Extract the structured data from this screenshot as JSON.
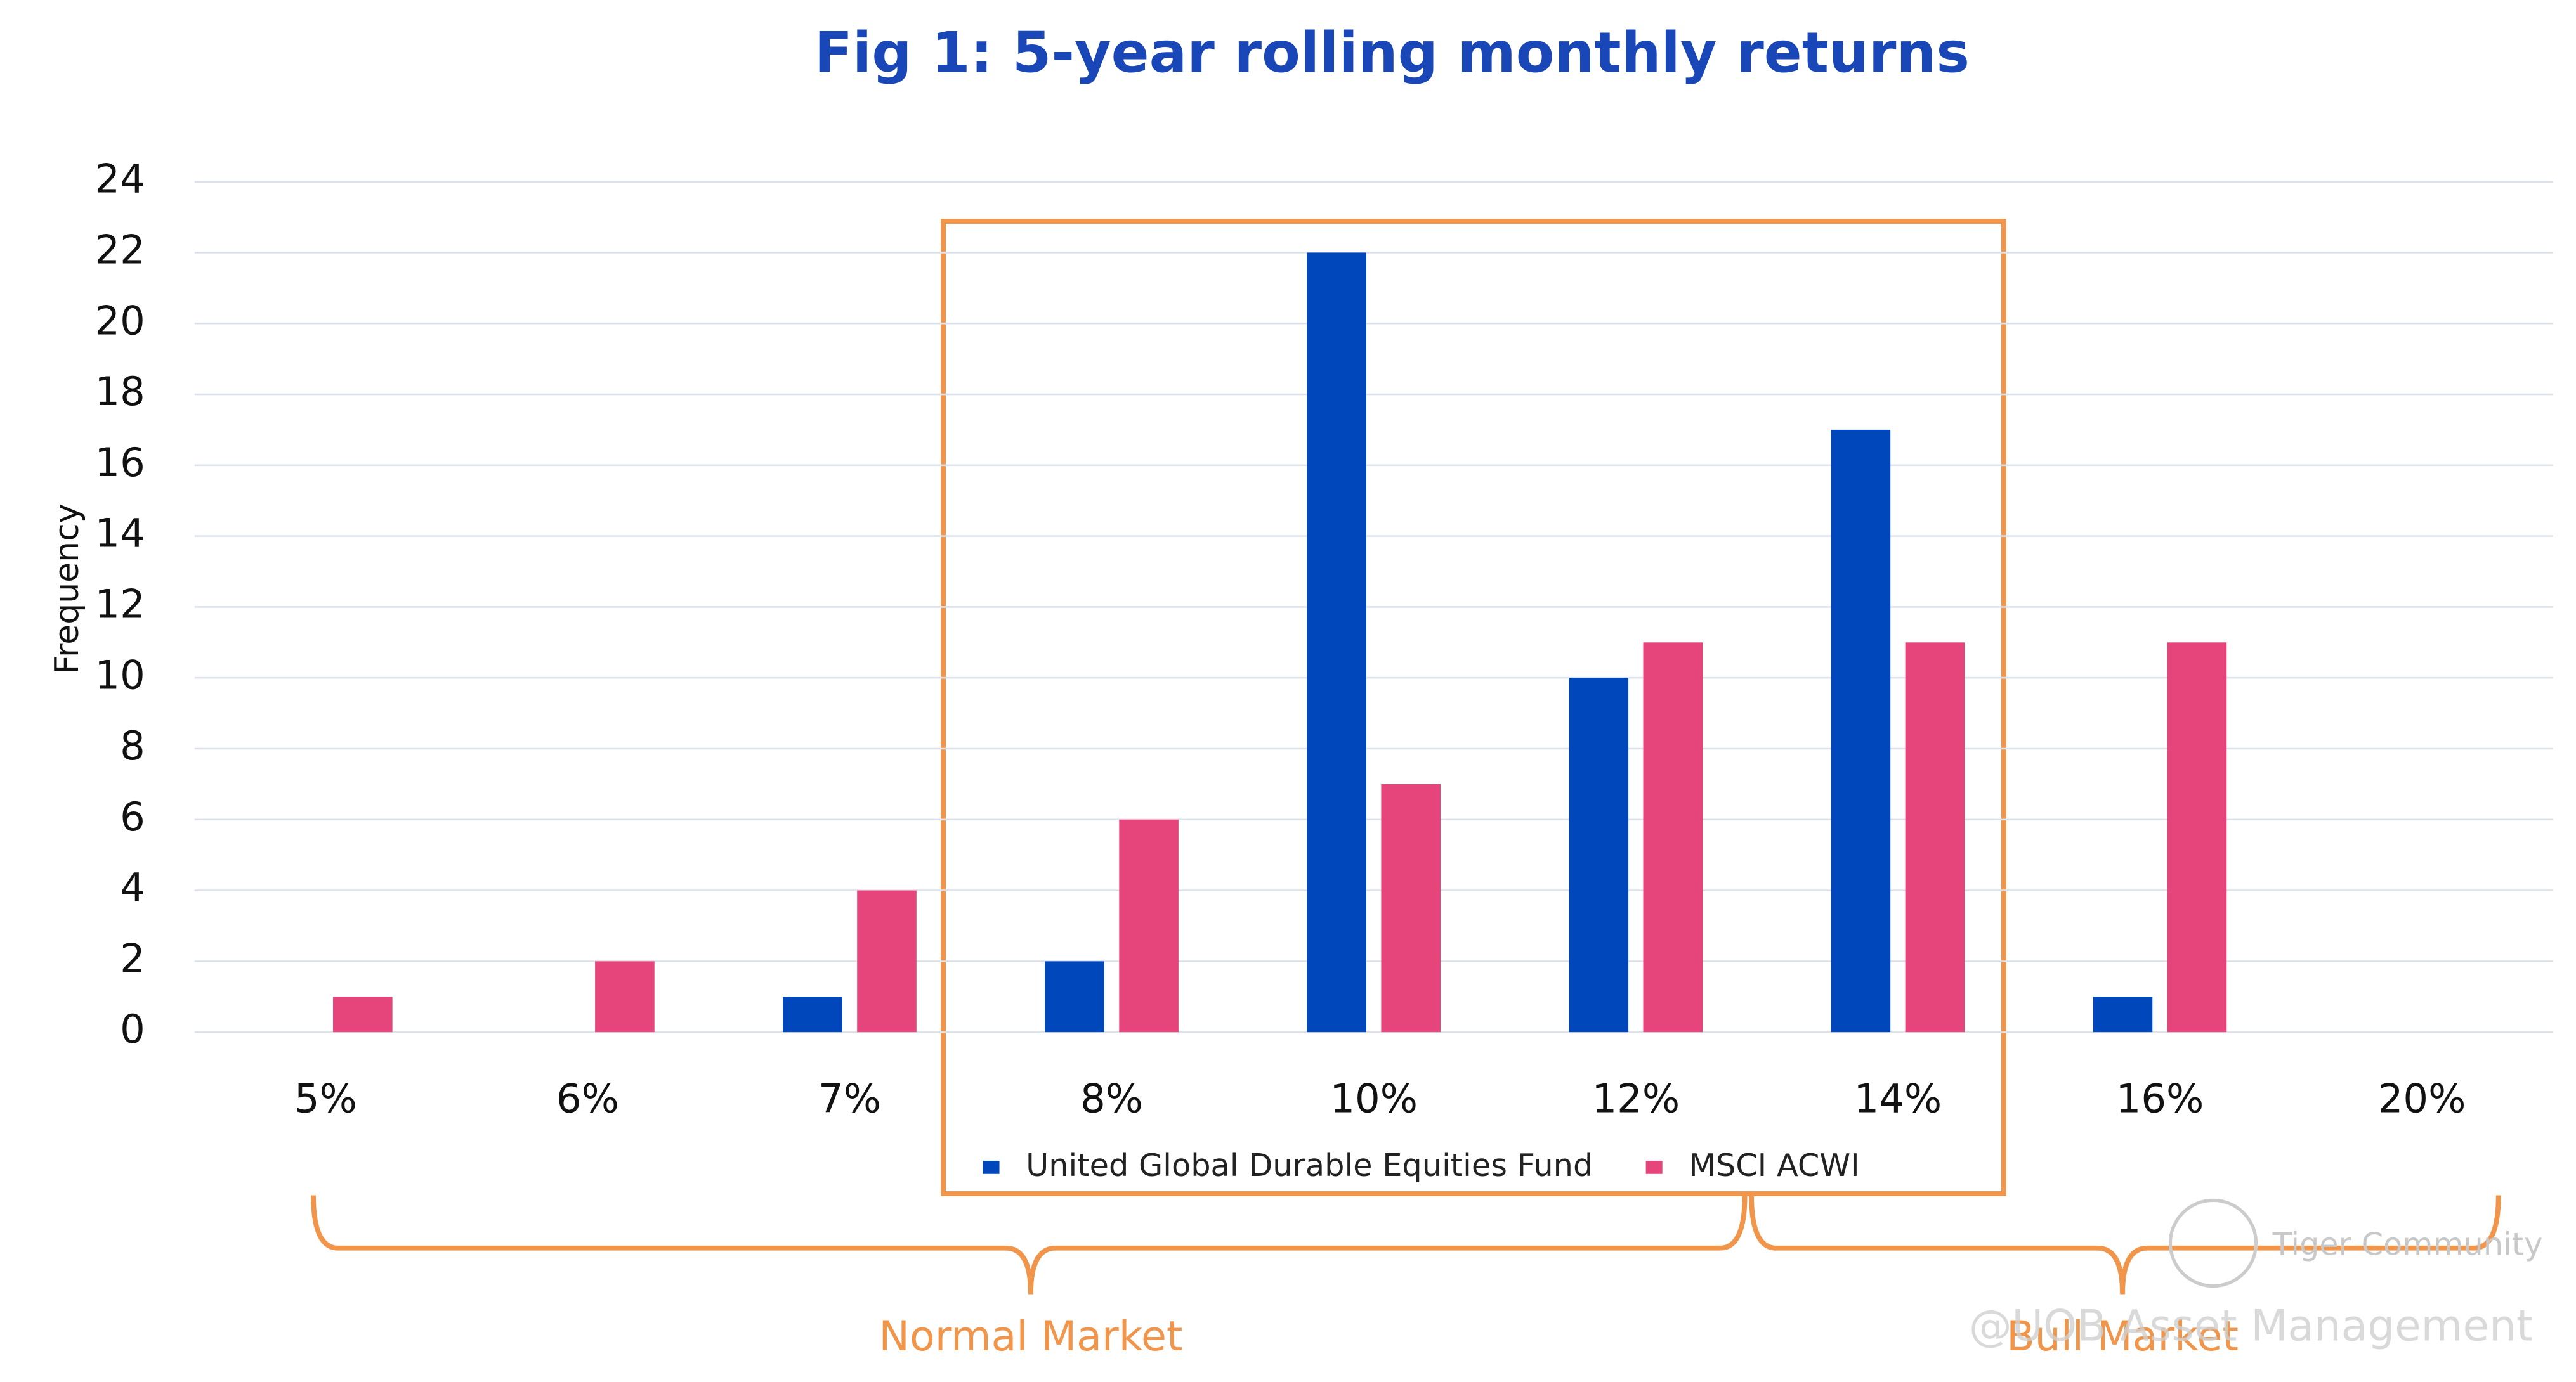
{
  "chart_data": {
    "type": "bar",
    "title": "Fig 1: 5-year rolling monthly returns",
    "y_label": "Frequency",
    "categories": [
      "5%",
      "6%",
      "7%",
      "8%",
      "10%",
      "12%",
      "14%",
      "16%",
      "20%"
    ],
    "series": [
      {
        "name": "United Global Durable Equities Fund",
        "color": "#0047bb",
        "values": [
          0,
          0,
          1,
          2,
          22,
          10,
          17,
          1,
          0
        ]
      },
      {
        "name": "MSCI ACWI",
        "color": "#e5457a",
        "values": [
          1,
          2,
          4,
          6,
          7,
          11,
          11,
          11,
          0
        ]
      }
    ],
    "ylim": [
      0,
      24
    ],
    "yticks": [
      0,
      2,
      4,
      6,
      8,
      10,
      12,
      14,
      16,
      18,
      20,
      22,
      24
    ],
    "grid": true,
    "annotations": [
      "Normal Market",
      "Bull Market"
    ],
    "watermarks": [
      "Tiger Community",
      "@UOB Asset Management"
    ]
  }
}
